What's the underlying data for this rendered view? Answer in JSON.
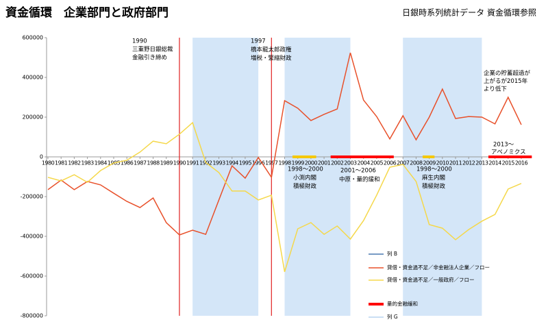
{
  "chart_data": {
    "type": "line",
    "title": "資金循環　企業部門と政府部門",
    "subtitle": "日銀時系列統計データ 資金循環参照",
    "x": [
      1980,
      1981,
      1982,
      1983,
      1984,
      1985,
      1986,
      1987,
      1988,
      1989,
      1990,
      1991,
      1992,
      1993,
      1994,
      1995,
      1996,
      1997,
      1998,
      1999,
      2000,
      2001,
      2002,
      2003,
      2004,
      2005,
      2006,
      2007,
      2008,
      2009,
      2010,
      2011,
      2012,
      2013,
      2014,
      2015,
      2016
    ],
    "xlim": [
      1980,
      2016
    ],
    "ylim": [
      -800000,
      600000
    ],
    "yticks": [
      -800000,
      -600000,
      -400000,
      -200000,
      0,
      200000,
      400000,
      600000
    ],
    "series": [
      {
        "name": "貸借・資金過不足／非金融法人企業／フロー",
        "color": "#e8502a",
        "values": [
          -165000,
          -117000,
          -165000,
          -124000,
          -141000,
          -183000,
          -224000,
          -255000,
          -207000,
          -331000,
          -393000,
          -369000,
          -390000,
          -217000,
          -45000,
          -107000,
          -3000,
          -103000,
          283000,
          245000,
          183000,
          214000,
          241000,
          524000,
          286000,
          203000,
          90000,
          207000,
          86000,
          200000,
          341000,
          193000,
          203000,
          200000,
          166000,
          300000,
          162000
        ]
      },
      {
        "name": "貸借・資金過不足／一般政府／フロー",
        "color": "#f5d84a",
        "values": [
          -103000,
          -121000,
          -90000,
          -128000,
          -69000,
          -31000,
          -17000,
          24000,
          79000,
          66000,
          114000,
          172000,
          -28000,
          -79000,
          -172000,
          -172000,
          -217000,
          -193000,
          -579000,
          -362000,
          -331000,
          -390000,
          -348000,
          -414000,
          -321000,
          -193000,
          -52000,
          -38000,
          -124000,
          -341000,
          -359000,
          -417000,
          -366000,
          -324000,
          -290000,
          -162000,
          -134000
        ]
      }
    ],
    "shaded_ranges": [
      {
        "start": 1991,
        "end": 1996,
        "color": "#d4e6f8"
      },
      {
        "start": 1998,
        "end": 2003,
        "color": "#d4e6f8"
      },
      {
        "start": 2007,
        "end": 2013,
        "color": "#d4e6f8"
      }
    ],
    "vertical_lines": [
      {
        "x": 1990,
        "color": "#e02020"
      },
      {
        "x": 1997,
        "color": "#e02020"
      }
    ],
    "period_bars": [
      {
        "start": 2001.5,
        "end": 2006.3,
        "color": "#ff0000"
      },
      {
        "start": 2013.5,
        "end": 2016.8,
        "color": "#ff0000"
      },
      {
        "start": 1998.6,
        "end": 2000.4,
        "color": "#f5c800"
      },
      {
        "start": 2008.5,
        "end": 2009.4,
        "color": "#f5c800"
      }
    ],
    "annotations": [
      [
        "1990",
        "三重野日銀総裁",
        "金融引き締め"
      ],
      [
        "1997",
        "橋本龍太郎政権",
        "増税・緊縮財政"
      ],
      [
        "1998～2000",
        "小渕内閣",
        "積極財政"
      ],
      [
        "2001～2006",
        "中原・量的緩和"
      ],
      [
        "1998～2000",
        "麻生内閣",
        "積極財政"
      ],
      [
        "2013～",
        "アベノミクス"
      ],
      [
        "企業の貯蓄超過が",
        "上がるが2015年",
        "より低下"
      ]
    ],
    "legend": [
      {
        "name": "列 B",
        "color": "#4a78b0",
        "kind": "line"
      },
      {
        "series": 0
      },
      {
        "series": 1
      },
      {
        "name": "量的金融緩和",
        "color": "#ff0000",
        "kind": "bar"
      },
      {
        "name": "列 G",
        "color": "#b8d4f0",
        "kind": "line"
      }
    ]
  }
}
